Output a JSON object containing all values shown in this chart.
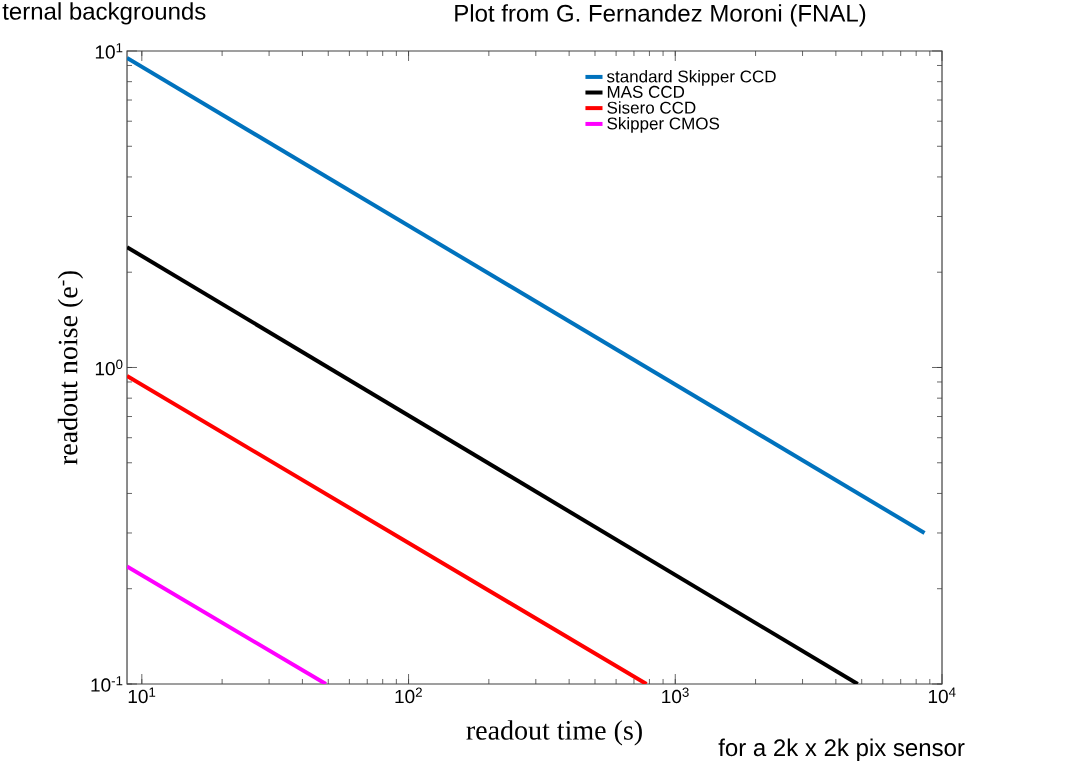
{
  "chart_data": {
    "type": "line",
    "xlabel": "readout time (s)",
    "ylabel": "readout noise (e$^{-}$)",
    "annotations": [
      "ternal backgrounds",
      "Plot from G. Fernandez Moroni (FNAL)",
      "for a 2k x 2k pix sensor"
    ],
    "log": "xy",
    "xlim": [
      8.8,
      10000
    ],
    "ylim": [
      0.1,
      10
    ],
    "xticks": [
      {
        "value": 10,
        "label": "10$^{1}$"
      },
      {
        "value": 100,
        "label": "10$^{2}$"
      },
      {
        "value": 1000,
        "label": "10$^{3}$"
      },
      {
        "value": 10000,
        "label": "10$^{4}$"
      }
    ],
    "yticks": [
      {
        "value": 0.1,
        "label": "10$^{-1}$"
      },
      {
        "value": 1,
        "label": "10$^{0}$"
      },
      {
        "value": 10,
        "label": "10$^{1}$"
      }
    ],
    "legend": "top right",
    "series": [
      {
        "name": "standard Skipper CCD",
        "color": "#0072bd",
        "x": [
          8.8,
          8600
        ],
        "values": [
          9.5,
          0.3
        ]
      },
      {
        "name": "MAS CCD",
        "color": "#000000",
        "x": [
          8.8,
          4830
        ],
        "values": [
          2.4,
          0.1
        ]
      },
      {
        "name": "Sisero CCD",
        "color": "#ff0000",
        "x": [
          8.8,
          780
        ],
        "values": [
          0.94,
          0.1
        ]
      },
      {
        "name": "Skipper CMOS",
        "color": "#ff00ff",
        "x": [
          8.8,
          49
        ],
        "values": [
          0.235,
          0.1
        ]
      }
    ]
  }
}
